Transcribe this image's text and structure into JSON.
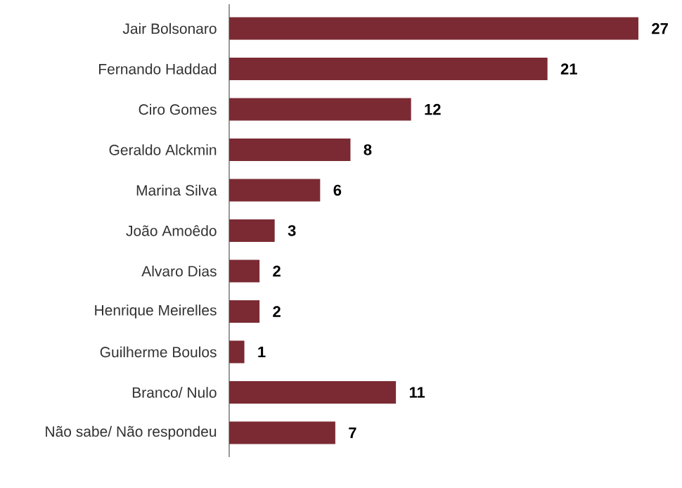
{
  "chart_data": {
    "type": "bar",
    "orientation": "horizontal",
    "data_labels": true,
    "color": "#7b2a33",
    "categories": [
      "Jair Bolsonaro",
      "Fernando Haddad",
      "Ciro Gomes",
      "Geraldo Alckmin",
      "Marina Silva",
      "João Amoêdo",
      "Alvaro Dias",
      "Henrique Meirelles",
      "Guilherme Boulos",
      "Branco/ Nulo",
      "Não sabe/ Não respondeu"
    ],
    "values": [
      27,
      21,
      12,
      8,
      6,
      3,
      2,
      2,
      1,
      11,
      7
    ]
  }
}
